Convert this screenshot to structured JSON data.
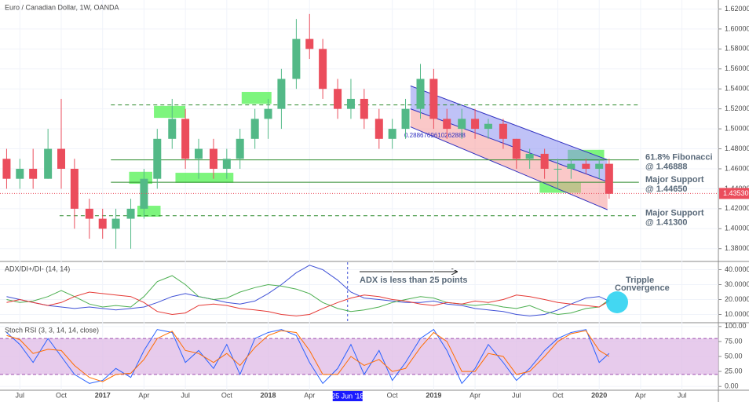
{
  "chart_data": [
    {
      "type": "candlestick",
      "title": "Euro / Canadian Dollar, 1W, OANDA",
      "x": [
        2016.42,
        2016.5,
        2016.58,
        2016.67,
        2016.75,
        2016.83,
        2016.92,
        2017.0,
        2017.08,
        2017.17,
        2017.25,
        2017.33,
        2017.42,
        2017.5,
        2017.58,
        2017.67,
        2017.75,
        2017.83,
        2017.92,
        2018.0,
        2018.08,
        2018.17,
        2018.25,
        2018.33,
        2018.42,
        2018.5,
        2018.58,
        2018.67,
        2018.75,
        2018.83,
        2018.92,
        2019.0,
        2019.08,
        2019.17,
        2019.25,
        2019.33,
        2019.42,
        2019.5,
        2019.58,
        2019.67,
        2019.75,
        2019.83,
        2019.92,
        2020.0,
        2020.06
      ],
      "open": [
        1.47,
        1.45,
        1.46,
        1.45,
        1.48,
        1.46,
        1.42,
        1.41,
        1.4,
        1.41,
        1.42,
        1.45,
        1.49,
        1.51,
        1.47,
        1.48,
        1.46,
        1.47,
        1.49,
        1.51,
        1.52,
        1.55,
        1.59,
        1.58,
        1.54,
        1.52,
        1.53,
        1.51,
        1.49,
        1.5,
        1.52,
        1.55,
        1.51,
        1.5,
        1.51,
        1.5,
        1.505,
        1.49,
        1.47,
        1.475,
        1.46,
        1.46,
        1.465,
        1.46,
        1.465
      ],
      "high": [
        1.48,
        1.47,
        1.48,
        1.5,
        1.53,
        1.47,
        1.43,
        1.42,
        1.42,
        1.43,
        1.46,
        1.5,
        1.53,
        1.52,
        1.49,
        1.49,
        1.48,
        1.5,
        1.52,
        1.53,
        1.56,
        1.61,
        1.615,
        1.59,
        1.55,
        1.55,
        1.54,
        1.52,
        1.51,
        1.53,
        1.565,
        1.56,
        1.52,
        1.52,
        1.52,
        1.51,
        1.51,
        1.49,
        1.48,
        1.48,
        1.47,
        1.47,
        1.47,
        1.47,
        1.47
      ],
      "low": [
        1.44,
        1.44,
        1.44,
        1.45,
        1.44,
        1.4,
        1.39,
        1.39,
        1.38,
        1.38,
        1.41,
        1.44,
        1.48,
        1.46,
        1.45,
        1.45,
        1.45,
        1.46,
        1.48,
        1.49,
        1.5,
        1.54,
        1.57,
        1.53,
        1.51,
        1.51,
        1.5,
        1.48,
        1.48,
        1.49,
        1.51,
        1.5,
        1.49,
        1.49,
        1.49,
        1.49,
        1.48,
        1.46,
        1.46,
        1.45,
        1.44,
        1.45,
        1.455,
        1.45,
        1.43
      ],
      "close": [
        1.45,
        1.46,
        1.45,
        1.48,
        1.46,
        1.42,
        1.41,
        1.4,
        1.41,
        1.42,
        1.45,
        1.49,
        1.51,
        1.47,
        1.48,
        1.46,
        1.47,
        1.49,
        1.51,
        1.52,
        1.55,
        1.59,
        1.58,
        1.54,
        1.52,
        1.53,
        1.51,
        1.49,
        1.5,
        1.52,
        1.55,
        1.51,
        1.5,
        1.51,
        1.5,
        1.505,
        1.49,
        1.47,
        1.475,
        1.46,
        1.46,
        1.465,
        1.46,
        1.465,
        1.435
      ],
      "up_color": "#53b987",
      "down_color": "#eb4d5c",
      "xlim": [
        2016.38,
        2020.72
      ],
      "xticks": [
        {
          "value": 2016.5,
          "label": "Jul"
        },
        {
          "value": 2016.75,
          "label": "Oct"
        },
        2017,
        {
          "value": 2017.25,
          "label": "Apr"
        },
        {
          "value": 2017.5,
          "label": "Jul"
        },
        {
          "value": 2017.75,
          "label": "Oct"
        },
        2018,
        {
          "value": 2018.25,
          "label": "Apr"
        },
        {
          "value": 2018.75,
          "label": "Oct"
        },
        2019,
        {
          "value": 2019.25,
          "label": "Apr"
        },
        {
          "value": 2019.5,
          "label": "Jul"
        },
        {
          "value": 2019.75,
          "label": "Oct"
        },
        2020,
        {
          "value": 2020.25,
          "label": "Apr"
        },
        {
          "value": 2020.5,
          "label": "Jul"
        }
      ],
      "crosshair": {
        "value": 2018.48,
        "label": "25 Jun '18"
      },
      "ylim": [
        1.368,
        1.629
      ],
      "yticks": [
        {
          "value": 1.62,
          "label": "1.62000"
        },
        {
          "value": 1.6,
          "label": "1.60000"
        },
        {
          "value": 1.58,
          "label": "1.58000"
        },
        {
          "value": 1.56,
          "label": "1.56000"
        },
        {
          "value": 1.54,
          "label": "1.54000"
        },
        {
          "value": 1.52,
          "label": "1.52000"
        },
        {
          "value": 1.5,
          "label": "1.50000"
        },
        {
          "value": 1.48,
          "label": "1.48000"
        },
        {
          "value": 1.46,
          "label": "1.46000"
        },
        {
          "value": 1.44,
          "label": "1.44000"
        },
        {
          "value": 1.42,
          "label": "1.42000"
        },
        {
          "value": 1.4,
          "label": "1.40000"
        },
        {
          "value": 1.38,
          "label": "1.38000"
        }
      ],
      "last_price": {
        "value": 1.4353,
        "label": "1.43530"
      },
      "levels": [
        {
          "value": 1.524,
          "style": "dashed",
          "x": [
            2017.05,
            2020.24
          ]
        },
        {
          "value": 1.46888,
          "style": "solid",
          "x": [
            2017.05,
            2020.24
          ],
          "label": [
            "61.8% Fibonacci",
            "@ 1.46888"
          ]
        },
        {
          "value": 1.4465,
          "style": "solid",
          "x": [
            2017.05,
            2020.24
          ],
          "label": [
            "Major Support",
            "@ 1.44650"
          ]
        },
        {
          "value": 1.413,
          "style": "dashed",
          "x": [
            2016.74,
            2020.24
          ],
          "label": [
            "Major Support",
            "@ 1.41300"
          ]
        }
      ],
      "zones": [
        {
          "x": [
            2017.21,
            2017.35
          ],
          "y": [
            1.412,
            1.423
          ]
        },
        {
          "x": [
            2017.16,
            2017.3
          ],
          "y": [
            1.445,
            1.457
          ]
        },
        {
          "x": [
            2017.31,
            2017.5
          ],
          "y": [
            1.511,
            1.523
          ]
        },
        {
          "x": [
            2017.44,
            2017.79
          ],
          "y": [
            1.446,
            1.456
          ]
        },
        {
          "x": [
            2017.84,
            2018.02
          ],
          "y": [
            1.525,
            1.537
          ]
        },
        {
          "x": [
            2019.81,
            2020.03
          ],
          "y": [
            1.468,
            1.479
          ]
        },
        {
          "x": [
            2019.64,
            2019.89
          ],
          "y": [
            1.436,
            1.446
          ]
        }
      ],
      "channel": {
        "x": [
          2018.86,
          2020.05
        ],
        "upper": [
          1.543,
          1.469
        ],
        "middle": [
          1.52,
          1.447
        ],
        "lower": [
          1.502,
          1.419
        ]
      },
      "annotation": "0.2886769610262888"
    },
    {
      "type": "line",
      "title": "ADX/DI+/DI- (14, 14)",
      "ylim": [
        5,
        45
      ],
      "yticks": [
        {
          "value": 40,
          "label": "40.00000"
        },
        {
          "value": 30,
          "label": "30.00000"
        },
        {
          "value": 20,
          "label": "20.00000"
        },
        {
          "value": 10,
          "label": "10.00000"
        }
      ],
      "series": [
        {
          "color": "#3f51d6",
          "values": [
            22,
            20,
            18,
            16,
            15,
            14,
            15,
            14,
            13,
            14,
            15,
            18,
            22,
            24,
            22,
            20,
            18,
            17,
            19,
            24,
            30,
            38,
            43,
            40,
            33,
            25,
            21,
            20,
            19,
            18,
            18,
            19,
            17,
            16,
            14,
            13,
            12,
            10,
            9,
            10,
            13,
            17,
            21,
            22,
            19
          ]
        },
        {
          "color": "#4caf50",
          "values": [
            20,
            18,
            19,
            22,
            26,
            22,
            17,
            15,
            16,
            15,
            22,
            32,
            36,
            30,
            22,
            20,
            21,
            25,
            28,
            30,
            29,
            27,
            24,
            18,
            14,
            12,
            13,
            15,
            18,
            20,
            22,
            21,
            18,
            17,
            16,
            17,
            15,
            14,
            16,
            12,
            10,
            11,
            14,
            15,
            20
          ]
        },
        {
          "color": "#e53935",
          "values": [
            18,
            20,
            18,
            16,
            18,
            22,
            25,
            24,
            23,
            22,
            18,
            12,
            10,
            11,
            16,
            17,
            16,
            14,
            13,
            12,
            10,
            9,
            10,
            14,
            18,
            21,
            23,
            22,
            20,
            19,
            17,
            16,
            18,
            17,
            19,
            18,
            20,
            23,
            22,
            20,
            18,
            17,
            16,
            15,
            19
          ]
        }
      ],
      "annotations": [
        "ADX is less than 25 points",
        "Tripple",
        "Convergence"
      ]
    },
    {
      "type": "line",
      "title": "Stoch RSI (3, 3, 14, 14, close)",
      "ylim": [
        -5,
        105
      ],
      "yticks": [
        {
          "value": 100,
          "label": "100.00"
        },
        {
          "value": 75,
          "label": "75.00"
        },
        {
          "value": 50,
          "label": "50.00"
        },
        {
          "value": 25,
          "label": "25.00"
        },
        {
          "value": 0,
          "label": "0.00"
        }
      ],
      "band": [
        20,
        80
      ],
      "series": [
        {
          "color": "#2962ff",
          "values": [
            90,
            70,
            40,
            80,
            50,
            20,
            5,
            10,
            30,
            15,
            60,
            95,
            90,
            40,
            60,
            30,
            70,
            20,
            80,
            90,
            95,
            85,
            40,
            5,
            30,
            70,
            20,
            60,
            10,
            40,
            80,
            95,
            60,
            5,
            30,
            70,
            40,
            10,
            30,
            60,
            80,
            90,
            95,
            40,
            55
          ]
        },
        {
          "color": "#ff6d00",
          "values": [
            85,
            78,
            55,
            62,
            60,
            35,
            15,
            8,
            20,
            22,
            45,
            80,
            92,
            60,
            55,
            40,
            55,
            35,
            65,
            85,
            93,
            90,
            60,
            20,
            20,
            50,
            35,
            45,
            25,
            30,
            65,
            90,
            75,
            25,
            25,
            55,
            50,
            20,
            25,
            50,
            75,
            88,
            93,
            60,
            50
          ]
        }
      ]
    }
  ]
}
